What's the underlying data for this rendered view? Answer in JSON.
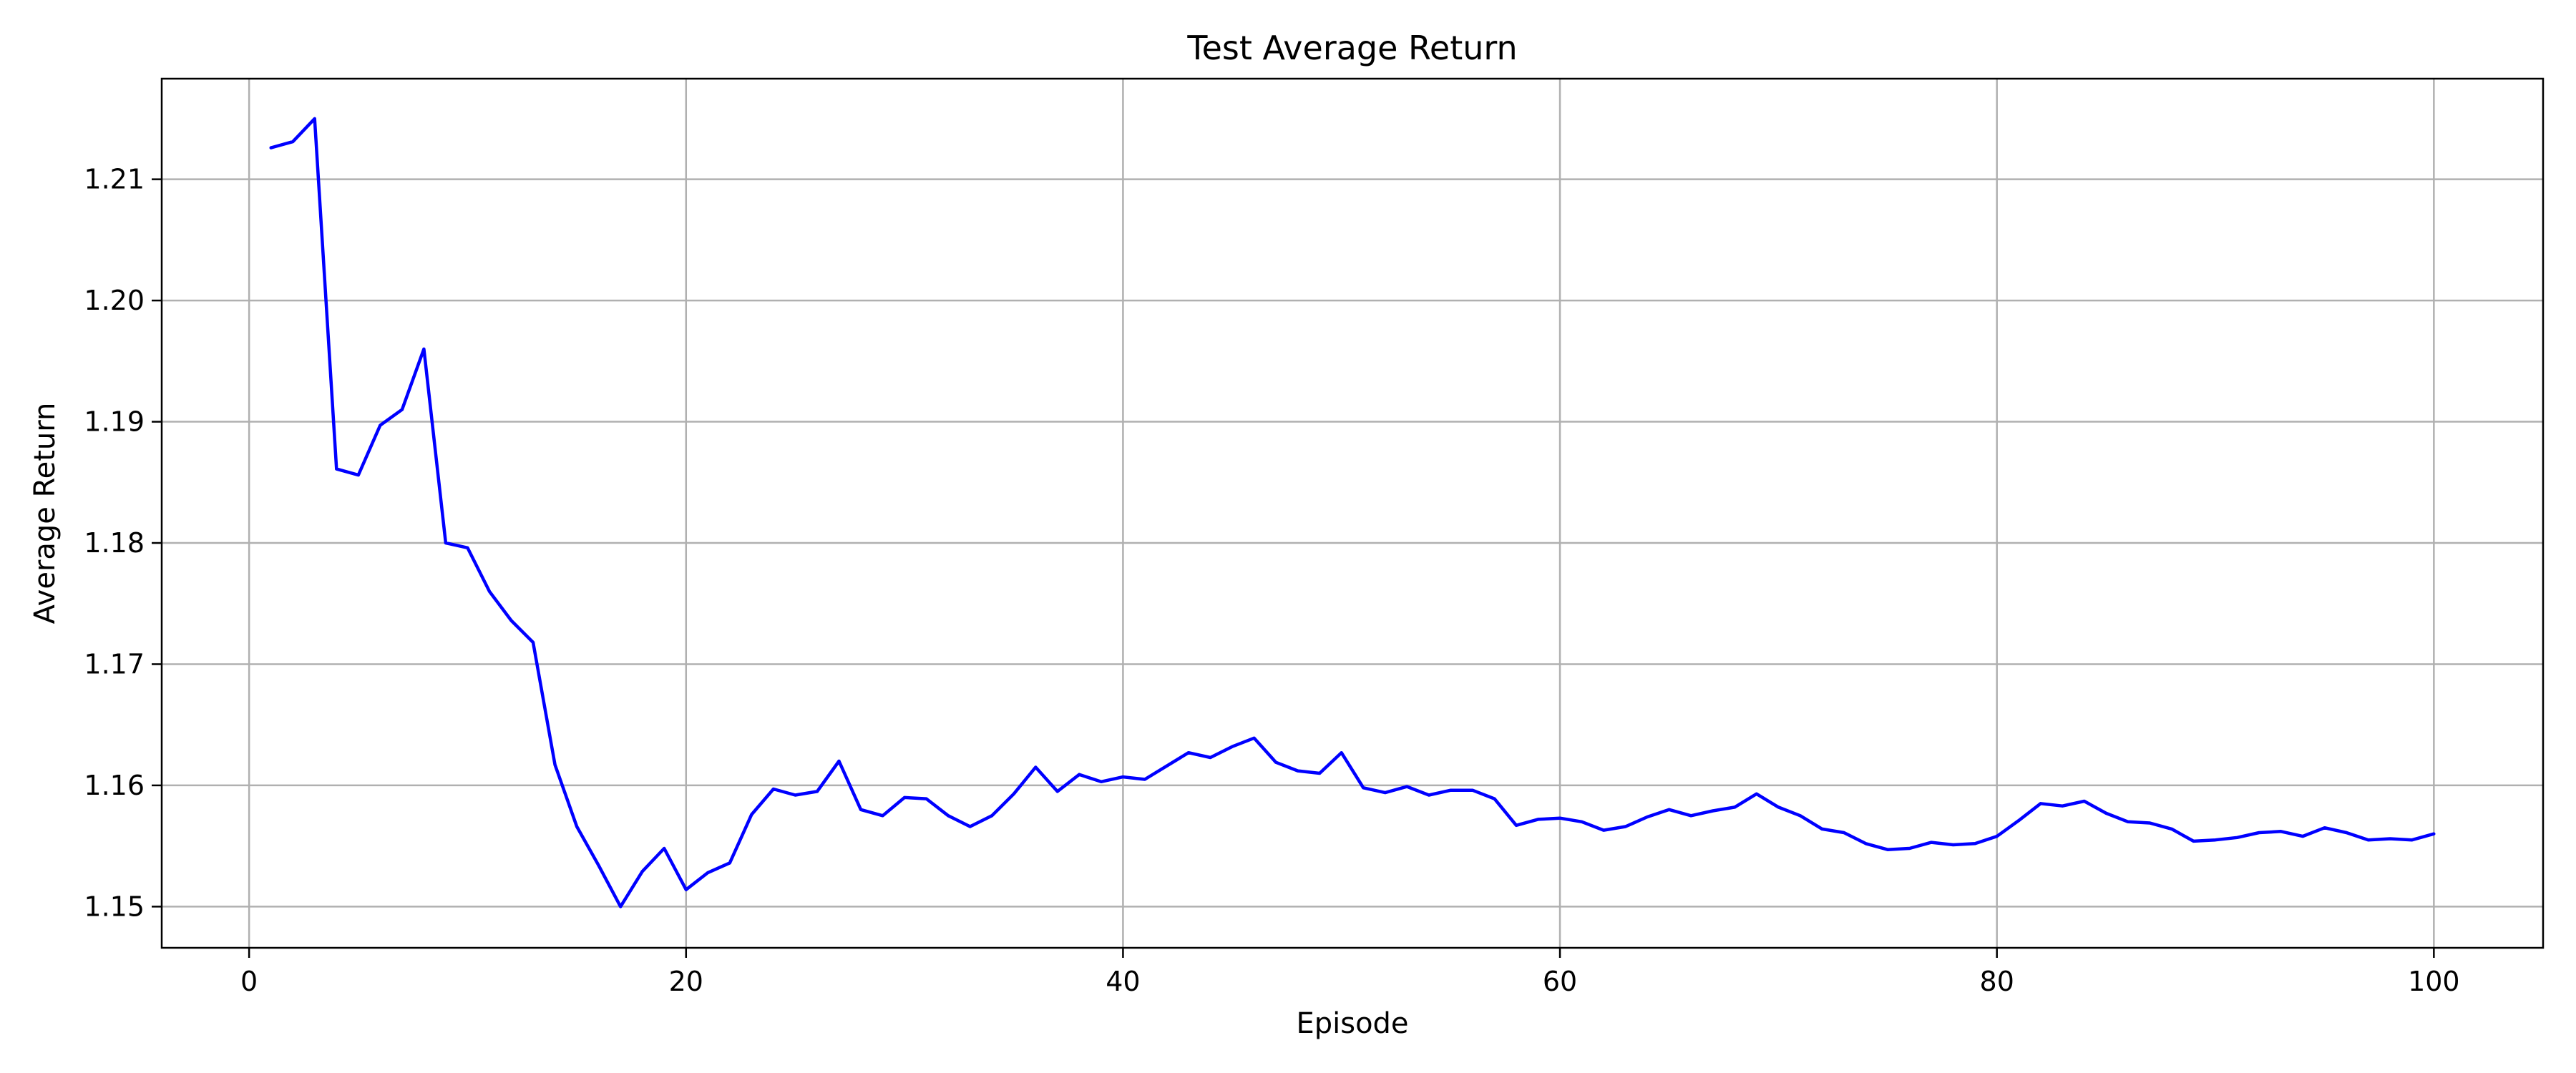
{
  "chart_data": {
    "type": "line",
    "title": "Test Average Return",
    "xlabel": "Episode",
    "ylabel": "Average Return",
    "xlim": [
      -4,
      105
    ],
    "ylim": [
      1.1466,
      1.2183
    ],
    "xticks": [
      0,
      20,
      40,
      60,
      80,
      100
    ],
    "yticks": [
      1.15,
      1.16,
      1.17,
      1.18,
      1.19,
      1.2,
      1.21
    ],
    "xtick_labels": [
      "0",
      "20",
      "40",
      "60",
      "80",
      "100"
    ],
    "ytick_labels": [
      "1.15",
      "1.16",
      "1.17",
      "1.18",
      "1.19",
      "1.20",
      "1.21"
    ],
    "grid": true,
    "series": [
      {
        "color": "#0000ff",
        "x": [
          1,
          2,
          3,
          4,
          5,
          6,
          7,
          8,
          9,
          10,
          11,
          12,
          13,
          14,
          15,
          16,
          17,
          18,
          19,
          20,
          21,
          22,
          23,
          24,
          25,
          26,
          27,
          28,
          29,
          30,
          31,
          32,
          33,
          34,
          35,
          36,
          37,
          38,
          39,
          40,
          41,
          42,
          43,
          44,
          45,
          46,
          47,
          48,
          49,
          50,
          51,
          52,
          53,
          54,
          55,
          56,
          57,
          58,
          59,
          60,
          61,
          62,
          63,
          64,
          65,
          66,
          67,
          68,
          69,
          70,
          71,
          72,
          73,
          74,
          75,
          76,
          77,
          78,
          79,
          80,
          81,
          82,
          83,
          84,
          85,
          86,
          87,
          88,
          89,
          90,
          91,
          92,
          93,
          94,
          95,
          96,
          97,
          98,
          99,
          100
        ],
        "y": [
          1.2126,
          1.2131,
          1.215,
          1.1861,
          1.1856,
          1.1897,
          1.191,
          1.196,
          1.18,
          1.1796,
          1.176,
          1.1736,
          1.1718,
          1.1617,
          1.1566,
          1.1534,
          1.15,
          1.1529,
          1.1548,
          1.1514,
          1.1528,
          1.1536,
          1.1576,
          1.1597,
          1.1592,
          1.1595,
          1.162,
          1.158,
          1.1575,
          1.159,
          1.1589,
          1.1575,
          1.1566,
          1.1575,
          1.1593,
          1.1615,
          1.1595,
          1.1609,
          1.1603,
          1.1607,
          1.1605,
          1.1616,
          1.1627,
          1.1623,
          1.1632,
          1.1639,
          1.1619,
          1.1612,
          1.161,
          1.1627,
          1.1598,
          1.1594,
          1.1599,
          1.1592,
          1.1596,
          1.1596,
          1.1589,
          1.1567,
          1.1572,
          1.1573,
          1.157,
          1.1563,
          1.1566,
          1.1574,
          1.158,
          1.1575,
          1.1579,
          1.1582,
          1.1593,
          1.1582,
          1.1575,
          1.1564,
          1.1561,
          1.1552,
          1.1547,
          1.1548,
          1.1553,
          1.1551,
          1.1552,
          1.1558,
          1.1571,
          1.1585,
          1.1583,
          1.1587,
          1.1577,
          1.157,
          1.1569,
          1.1564,
          1.1554,
          1.1555,
          1.1557,
          1.1561,
          1.1562,
          1.1558,
          1.1565,
          1.1561,
          1.1555,
          1.1556,
          1.1555,
          1.156
        ]
      }
    ]
  }
}
